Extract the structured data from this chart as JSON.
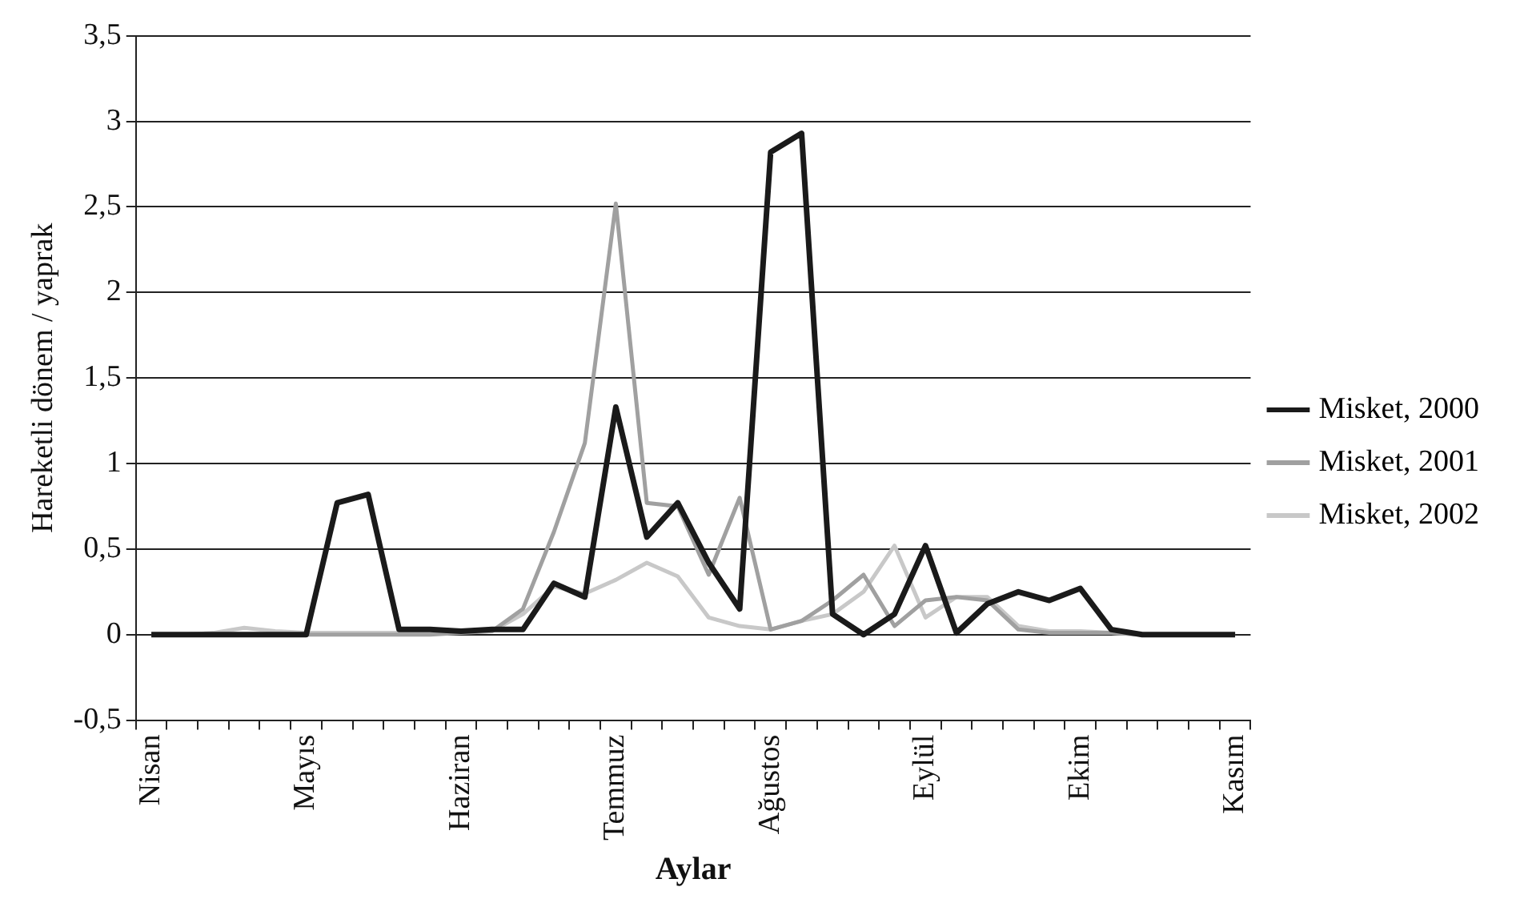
{
  "chart_data": {
    "type": "line",
    "xlabel": "Aylar",
    "ylabel": "Hareketli dönem / yaprak",
    "categories": [
      "Nisan",
      null,
      null,
      null,
      null,
      "Mayıs",
      null,
      null,
      null,
      null,
      "Haziran",
      null,
      null,
      null,
      null,
      "Temmuz",
      null,
      null,
      null,
      null,
      "Ağustos",
      null,
      null,
      null,
      null,
      "Eylül",
      null,
      null,
      null,
      null,
      "Ekim",
      null,
      null,
      null,
      null,
      "Kasım"
    ],
    "series": [
      {
        "name": "Misket, 2000",
        "color": "#1a1a1a",
        "values": [
          0,
          0,
          0,
          0,
          0,
          0,
          0.77,
          0.82,
          0.03,
          0.03,
          0.02,
          0.03,
          0.03,
          0.3,
          0.22,
          1.33,
          0.57,
          0.77,
          0.42,
          0.15,
          2.82,
          2.93,
          0.12,
          0,
          0.12,
          0.52,
          0.01,
          0.18,
          0.25,
          0.2,
          0.27,
          0.03,
          0,
          0,
          0,
          0
        ]
      },
      {
        "name": "Misket, 2001",
        "color": "#a0a0a0",
        "values": [
          0,
          0,
          0,
          0,
          0,
          0,
          0,
          0,
          0,
          0,
          0.01,
          0.02,
          0.15,
          0.6,
          1.12,
          2.52,
          0.77,
          0.75,
          0.35,
          0.8,
          0.03,
          0.08,
          0.2,
          0.35,
          0.05,
          0.2,
          0.22,
          0.2,
          0.03,
          0.01,
          0.01,
          0.01,
          0,
          0,
          0,
          0
        ]
      },
      {
        "name": "Misket, 2002",
        "color": "#c8c8c8",
        "values": [
          0,
          0,
          0.01,
          0.04,
          0.02,
          0.01,
          0.01,
          0.01,
          0.01,
          0.02,
          0.02,
          0.02,
          0.12,
          0.28,
          0.24,
          0.32,
          0.42,
          0.34,
          0.1,
          0.05,
          0.03,
          0.08,
          0.12,
          0.25,
          0.52,
          0.1,
          0.22,
          0.22,
          0.05,
          0.02,
          0.02,
          0.01,
          0,
          0,
          0,
          0
        ]
      }
    ],
    "ylim": [
      -0.5,
      3.5
    ],
    "yticks": [
      {
        "value": -0.5,
        "label": "-0,5"
      },
      0,
      {
        "value": 0.5,
        "label": "0,5"
      },
      1,
      {
        "value": 1.5,
        "label": "1,5"
      },
      2,
      {
        "value": 2.5,
        "label": "2,5"
      },
      3,
      {
        "value": 3.5,
        "label": "3,5"
      }
    ],
    "grid": "y",
    "legend": "right",
    "marker": "none",
    "line_style": "solid"
  }
}
